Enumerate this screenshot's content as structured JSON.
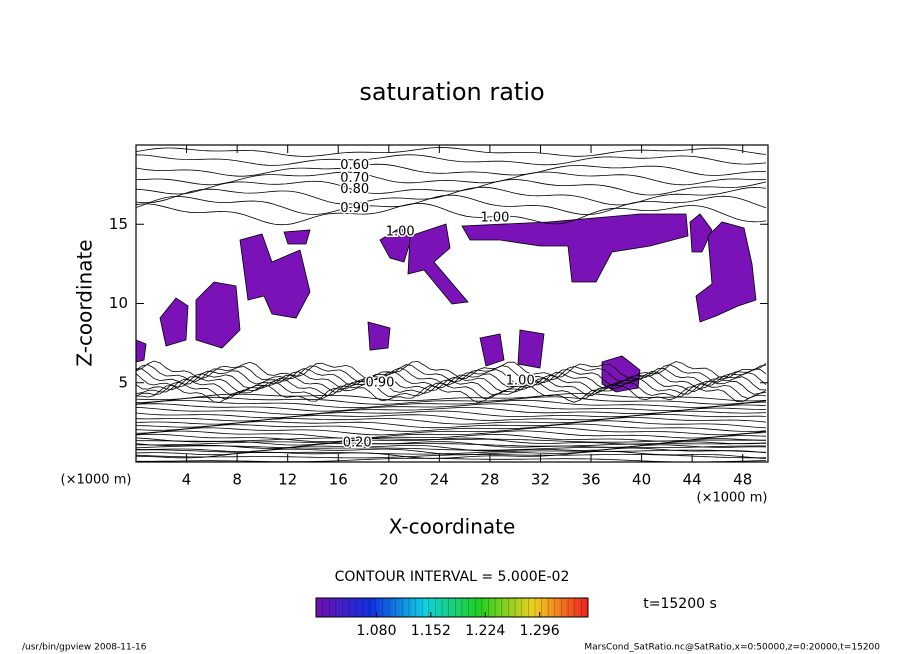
{
  "chart_data": {
    "type": "contour",
    "title": "saturation ratio",
    "x_label": "X-coordinate",
    "y_label": "Z-coordinate",
    "x_unit": "(×1000 m)",
    "y_unit": "(×1000 m)",
    "xlim": [
      0,
      50
    ],
    "ylim": [
      0,
      20
    ],
    "xticks": [
      4,
      8,
      12,
      16,
      20,
      24,
      28,
      32,
      36,
      40,
      44,
      48
    ],
    "yticks": [
      5,
      10,
      15
    ],
    "fill_color": "#7a12b8",
    "contour_labels": [
      {
        "text": "0.60",
        "x": 17.3,
        "y": 18.7
      },
      {
        "text": "0.70",
        "x": 17.3,
        "y": 17.9
      },
      {
        "text": "0.80",
        "x": 17.3,
        "y": 17.2
      },
      {
        "text": "0.90",
        "x": 17.3,
        "y": 16.0
      },
      {
        "text": "1.00",
        "x": 28.4,
        "y": 15.4
      },
      {
        "text": "1.00",
        "x": 20.9,
        "y": 14.5
      },
      {
        "text": "0.90",
        "x": 19.3,
        "y": 5.0
      },
      {
        "text": "1.00",
        "x": 30.4,
        "y": 5.1
      },
      {
        "text": "0.20",
        "x": 17.5,
        "y": 1.2
      }
    ],
    "contour_interval": "CONTOUR INTERVAL = 5.000E-02",
    "colorbar": {
      "clim": [
        1.0,
        1.36
      ],
      "ticks": [
        {
          "value": 1.08,
          "label": "1.080"
        },
        {
          "value": 1.152,
          "label": "1.152"
        },
        {
          "value": 1.224,
          "label": "1.224"
        },
        {
          "value": 1.296,
          "label": "1.296"
        }
      ]
    },
    "time_label": "t=15200 s",
    "footer_left": "/usr/bin/gpview  2008-11-16",
    "footer_right": "MarsCond_SatRatio.nc@SatRatio,x=0:50000,z=0:20000,t=15200"
  }
}
